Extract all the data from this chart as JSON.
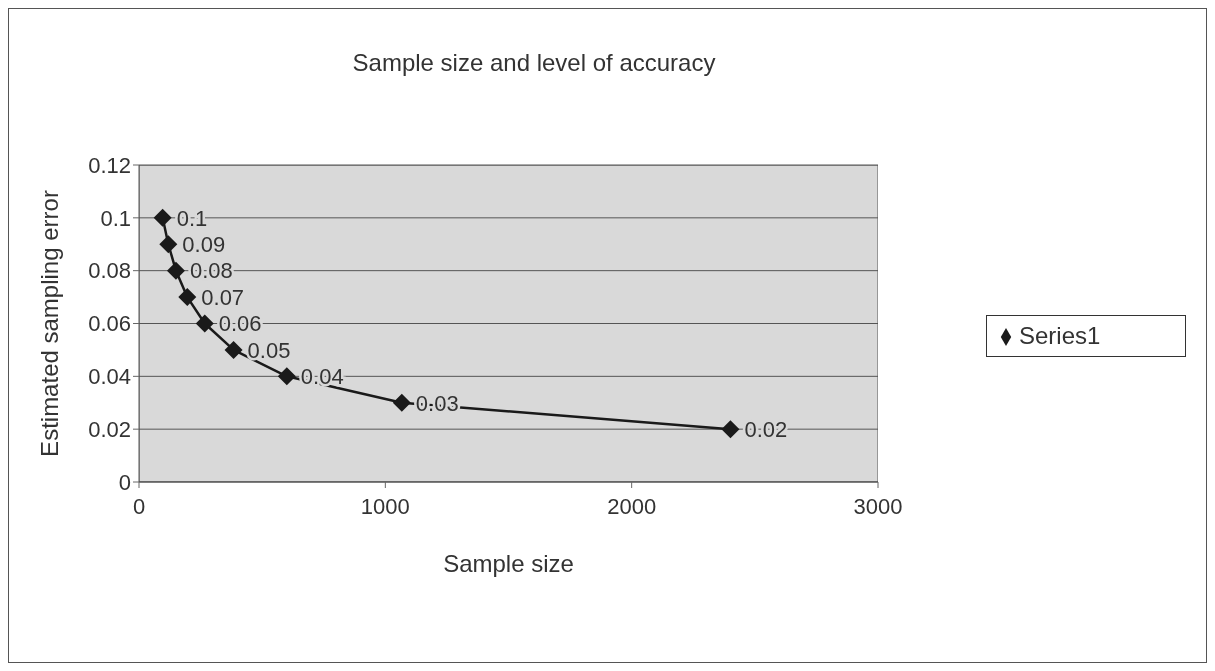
{
  "chart_data": {
    "type": "line",
    "title": "Sample size and level of accuracy",
    "xlabel": "Sample size",
    "ylabel": "Estimated sampling error",
    "x": [
      96,
      119,
      150,
      196,
      267,
      384,
      600,
      1067,
      2401
    ],
    "series": [
      {
        "name": "Series1",
        "color": "#1a1a1a",
        "values": [
          0.1,
          0.09,
          0.08,
          0.07,
          0.06,
          0.05,
          0.04,
          0.03,
          0.02
        ]
      }
    ],
    "xlim": [
      0,
      3000
    ],
    "xticks": [
      0,
      1000,
      2000,
      3000
    ],
    "ylim": [
      0,
      0.12
    ],
    "yticks": [
      0,
      0.02,
      0.04,
      0.06,
      0.08,
      0.1,
      0.12
    ],
    "grid": "y",
    "legend": "right",
    "marker": "diamond",
    "data_labels": true
  }
}
